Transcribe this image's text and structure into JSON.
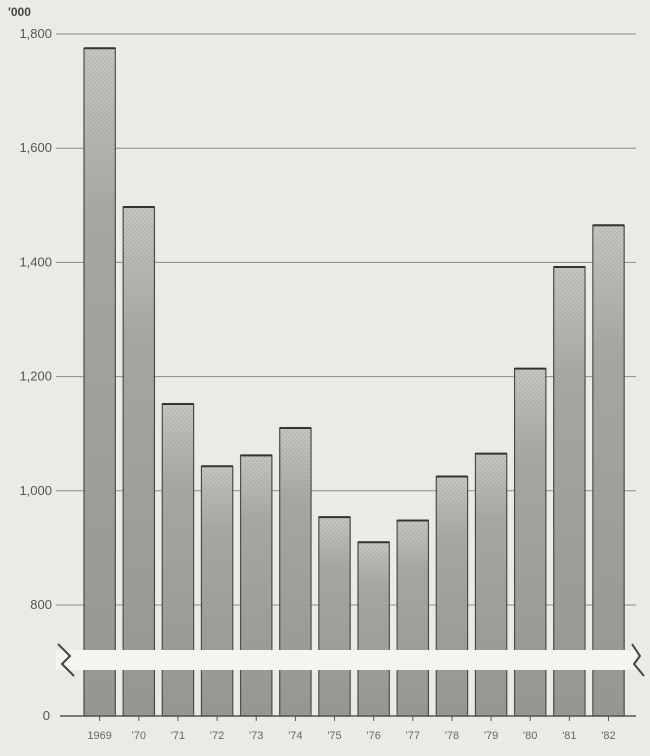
{
  "chart_data": {
    "type": "bar",
    "unit_label": "'000",
    "categories": [
      "1969",
      "'70",
      "'71",
      "'72",
      "'73",
      "'74",
      "'75",
      "'76",
      "'77",
      "'78",
      "'79",
      "'80",
      "'81",
      "'82"
    ],
    "values": [
      1775,
      1497,
      1152,
      1043,
      1062,
      1110,
      954,
      910,
      948,
      1025,
      1065,
      1214,
      1392,
      1465
    ],
    "y_ticks": [
      {
        "value": 1800,
        "label": "1,800"
      },
      {
        "value": 1600,
        "label": "1,600"
      },
      {
        "value": 1400,
        "label": "1,400"
      },
      {
        "value": 1200,
        "label": "1,200"
      },
      {
        "value": 1000,
        "label": "1,000"
      },
      {
        "value": 800,
        "label": "800"
      }
    ],
    "y_zero_label": "0",
    "ylim": [
      800,
      1800
    ],
    "axis_break": true,
    "grid": true,
    "title": "",
    "xlabel": "",
    "ylabel": "",
    "colors": {
      "background": "#eceae4",
      "bar_fill": "#9d9d97",
      "bar_top": "#c8c8c2",
      "bar_edge": "#4a4a46",
      "grid": "#8a8a86",
      "axis": "#555555",
      "break_band": "#f4f4f0"
    }
  }
}
